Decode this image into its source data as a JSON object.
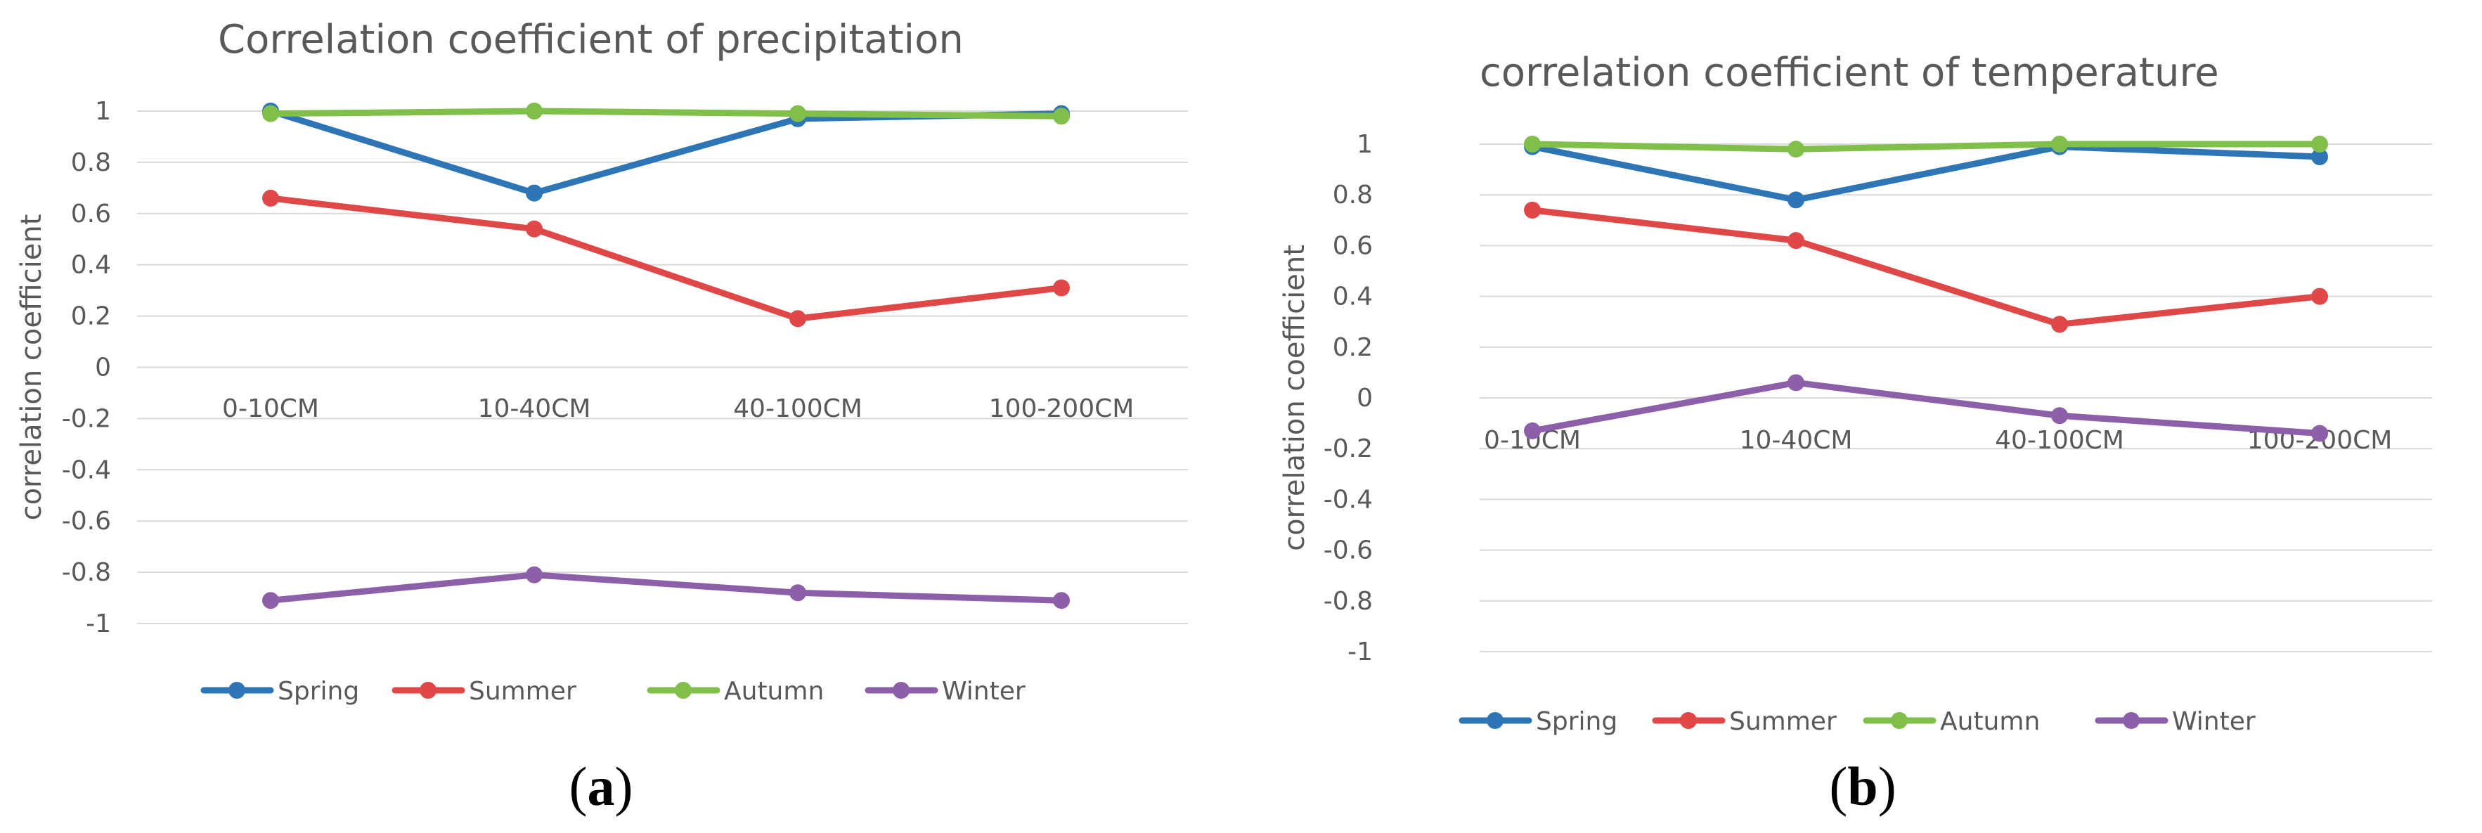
{
  "figure": {
    "panel_a_caption": "a",
    "panel_b_caption": "b"
  },
  "colors": {
    "Spring": "#2e75b6",
    "Summer": "#e04848",
    "Autumn": "#7fbf4a",
    "Winter": "#8c5fa8"
  },
  "chart_data": [
    {
      "type": "line",
      "title": "Correlation coefficient of precipitation",
      "xlabel": "",
      "ylabel": "correlation coefficient",
      "ylim": [
        -1,
        1
      ],
      "yticks": [
        "1",
        "0.8",
        "0.6",
        "0.4",
        "0.2",
        "0",
        "-0.2",
        "-0.4",
        "-0.6",
        "-0.8",
        "-1"
      ],
      "categories": [
        "0-10CM",
        "10-40CM",
        "40-100CM",
        "100-200CM"
      ],
      "legend_position": "bottom",
      "grid": true,
      "series": [
        {
          "name": "Spring",
          "values": [
            1.0,
            0.68,
            0.97,
            0.99
          ]
        },
        {
          "name": "Summer",
          "values": [
            0.66,
            0.54,
            0.19,
            0.31
          ]
        },
        {
          "name": "Autumn",
          "values": [
            0.99,
            1.0,
            0.99,
            0.98
          ]
        },
        {
          "name": "Winter",
          "values": [
            -0.91,
            -0.81,
            -0.88,
            -0.91
          ]
        }
      ]
    },
    {
      "type": "line",
      "title": "correlation coefficient of temperature",
      "xlabel": "",
      "ylabel": "correlation coefficient",
      "ylim": [
        -1,
        1
      ],
      "yticks": [
        "1",
        "0.8",
        "0.6",
        "0.4",
        "0.2",
        "0",
        "-0.2",
        "-0.4",
        "-0.6",
        "-0.8",
        "-1"
      ],
      "categories": [
        "0-10CM",
        "10-40CM",
        "40-100CM",
        "100-200CM"
      ],
      "legend_position": "bottom",
      "grid": true,
      "series": [
        {
          "name": "Spring",
          "values": [
            0.99,
            0.78,
            0.99,
            0.95
          ]
        },
        {
          "name": "Summer",
          "values": [
            0.74,
            0.62,
            0.29,
            0.4
          ]
        },
        {
          "name": "Autumn",
          "values": [
            1.0,
            0.98,
            1.0,
            1.0
          ]
        },
        {
          "name": "Winter",
          "values": [
            -0.13,
            0.06,
            -0.07,
            -0.14
          ]
        }
      ]
    }
  ]
}
